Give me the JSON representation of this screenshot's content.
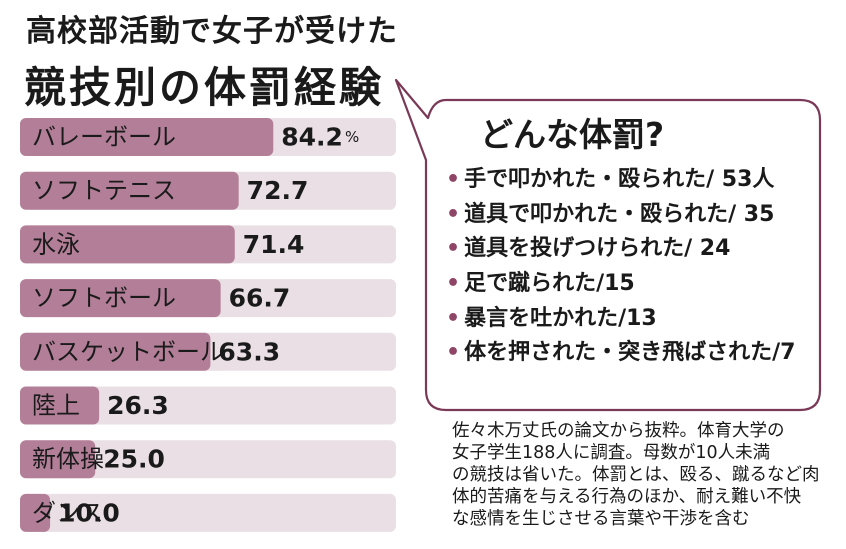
{
  "title_line1": "高校部活動で女子が受けた",
  "title_line2": "競技別の体罰経験",
  "colors": {
    "bar": "#b37f98",
    "track": "#e9dfe4",
    "accent": "#8e4566",
    "outline": "#7a3a57"
  },
  "chart_data": {
    "type": "bar",
    "orientation": "horizontal",
    "categories": [
      "バレーボール",
      "ソフトテニス",
      "水泳",
      "ソフトボール",
      "バスケットボール",
      "陸上",
      "新体操",
      "ダンス"
    ],
    "values": [
      84.2,
      72.7,
      71.4,
      66.7,
      63.3,
      26.3,
      25.0,
      10.0
    ],
    "value_labels": [
      "84.2",
      "72.7",
      "71.4",
      "66.7",
      "63.3",
      "26.3",
      "25.0",
      "10.0"
    ],
    "unit": "%",
    "xlim": [
      0,
      100
    ]
  },
  "callout": {
    "title": "どんな体罰?",
    "bullet": "•",
    "items": [
      "手で叩かれた・殴られた/ 53人",
      "道具で叩かれた・殴られた/ 35",
      "道具を投げつけられた/ 24",
      "足で蹴られた/15",
      "暴言を吐かれた/13",
      "体を押された・突き飛ばされた/7"
    ]
  },
  "note_lines": [
    "佐々木万丈氏の論文から抜粋。体育大学の",
    "女子学生188人に調査。母数が10人未満",
    "の競技は省いた。体罰とは、殴る、蹴るなど肉",
    "体的苦痛を与える行為のほか、耐え難い不快",
    "な感情を生じさせる言葉や干渉を含む"
  ]
}
